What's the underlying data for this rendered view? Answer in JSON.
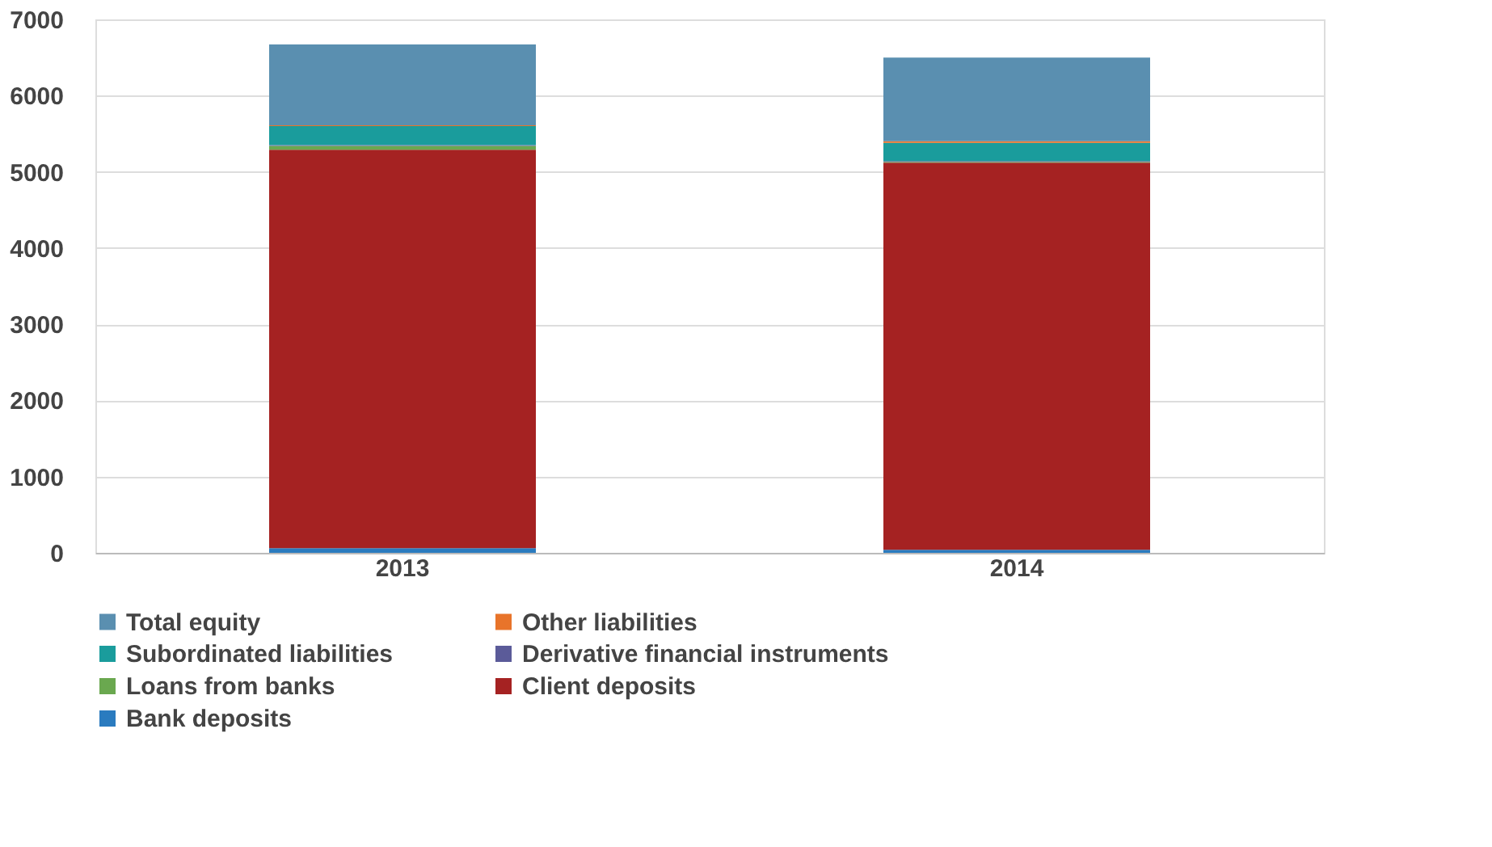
{
  "chart_data": {
    "type": "bar",
    "stacked": true,
    "categories": [
      "2013",
      "2014"
    ],
    "series": [
      {
        "name": "Bank deposits",
        "color": "#2a7bbf",
        "values": [
          60,
          40
        ]
      },
      {
        "name": "Client deposits",
        "color": "#a52222",
        "values": [
          5230,
          5080
        ]
      },
      {
        "name": "Loans from banks",
        "color": "#6aa84f",
        "values": [
          50,
          10
        ]
      },
      {
        "name": "Derivative financial instruments",
        "color": "#5b5b99",
        "values": [
          10,
          10
        ]
      },
      {
        "name": "Subordinated liabilities",
        "color": "#1a9c9c",
        "values": [
          250,
          240
        ]
      },
      {
        "name": "Other liabilities",
        "color": "#e8742a",
        "values": [
          10,
          20
        ]
      },
      {
        "name": "Total equity",
        "color": "#5a8fb0",
        "values": [
          1060,
          1100
        ]
      }
    ],
    "ylim": [
      0,
      7000
    ],
    "yticks": [
      0,
      1000,
      2000,
      3000,
      4000,
      5000,
      6000,
      7000
    ],
    "grid": "y",
    "legend": "bottom"
  }
}
